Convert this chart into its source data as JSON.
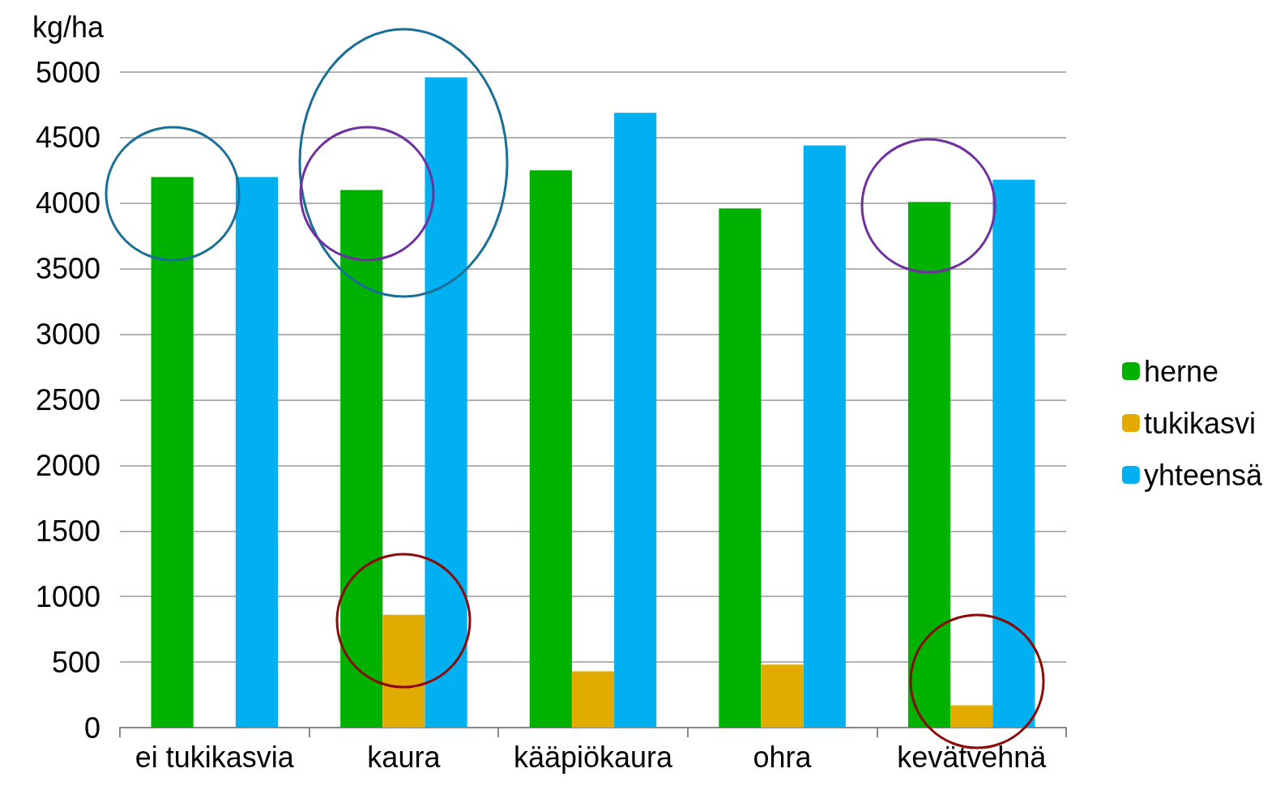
{
  "chart_data": {
    "type": "bar",
    "ylabel": "kg/ha",
    "categories": [
      "ei tukikasvia",
      "kaura",
      "kääpiökaura",
      "ohra",
      "kevätvehnä"
    ],
    "series": [
      {
        "name": "herne",
        "color": "#00b200",
        "values": [
          4200,
          4100,
          4250,
          3960,
          4010
        ]
      },
      {
        "name": "tukikasvi",
        "color": "#e2ab00",
        "values": [
          null,
          860,
          430,
          480,
          170
        ]
      },
      {
        "name": "yhteensä",
        "color": "#00b0f0",
        "values": [
          4200,
          4960,
          4690,
          4440,
          4180
        ]
      }
    ],
    "ylim": [
      0,
      5000
    ],
    "yticks": [
      0,
      500,
      1000,
      1500,
      2000,
      2500,
      3000,
      3500,
      4000,
      4500,
      5000
    ],
    "grid": "y",
    "legend": "right"
  }
}
